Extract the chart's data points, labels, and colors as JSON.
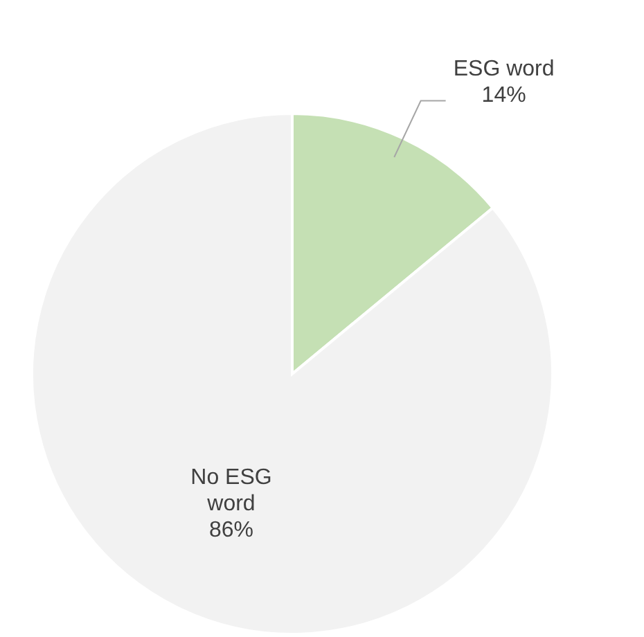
{
  "chart_data": {
    "type": "pie",
    "categories": [
      "ESG word",
      "No ESG word"
    ],
    "values": [
      14,
      86
    ],
    "colors": [
      "#c5e0b4",
      "#f2f2f2"
    ],
    "value_labels": [
      "14%",
      "86%"
    ]
  }
}
